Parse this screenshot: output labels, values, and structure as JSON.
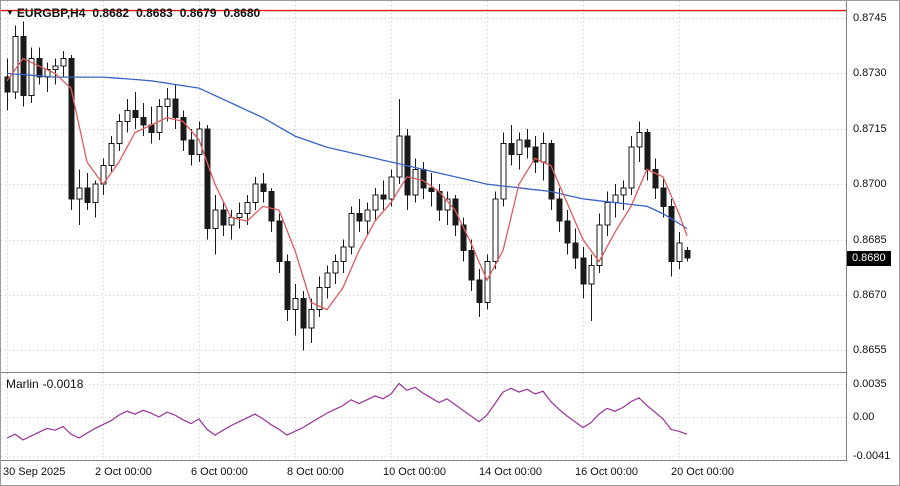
{
  "header": {
    "symbol": "EURGBP,H4",
    "quotes": [
      "0.8682",
      "0.8683",
      "0.8679",
      "0.8680"
    ]
  },
  "indicator_label": {
    "name": "Marlin",
    "value": "-0.0018"
  },
  "colors": {
    "up_fill": "#ffffff",
    "down_fill": "#1a1a1a",
    "outline": "#1a1a1a",
    "ma_fast": "#e05a5a",
    "ma_slow": "#3a64c8",
    "marlin": "#993399",
    "level": "#ee1010",
    "grid": "#c9c9c9",
    "tag_bg": "#000000",
    "tag_text": "#ffffff"
  },
  "chart_data": {
    "type": "candlestick",
    "symbol": "EURGBP",
    "timeframe": "H4",
    "title": "EURGBP,H4 0.8682 0.8683 0.8679 0.8680",
    "price_range": {
      "top": 0.87496,
      "bottom": 0.86494
    },
    "price_ticks": [
      "0.8745",
      "0.8730",
      "0.8715",
      "0.8700",
      "0.8685",
      "0.8670",
      "0.8655"
    ],
    "level_line": 0.8747,
    "current_price": {
      "label": "0.8680",
      "value": 0.868
    },
    "time_ticks": [
      {
        "label": "30 Sep 2025",
        "i": 0
      },
      {
        "label": "2 Oct 00:00",
        "i": 12
      },
      {
        "label": "6 Oct 00:00",
        "i": 24
      },
      {
        "label": "8 Oct 00:00",
        "i": 36
      },
      {
        "label": "10 Oct 00:00",
        "i": 48
      },
      {
        "label": "14 Oct 00:00",
        "i": 60
      },
      {
        "label": "16 Oct 00:00",
        "i": 72
      },
      {
        "label": "20 Oct 00:00",
        "i": 84
      }
    ],
    "candles": [
      [
        0.8729,
        0.8734,
        0.872,
        0.8725
      ],
      [
        0.8725,
        0.8743,
        0.8723,
        0.874
      ],
      [
        0.874,
        0.8744,
        0.8721,
        0.8724
      ],
      [
        0.8724,
        0.8737,
        0.8722,
        0.8734
      ],
      [
        0.8734,
        0.8737,
        0.8727,
        0.8729
      ],
      [
        0.8729,
        0.8733,
        0.8725,
        0.8731
      ],
      [
        0.8731,
        0.8734,
        0.8727,
        0.8732
      ],
      [
        0.8732,
        0.8736,
        0.8729,
        0.8734
      ],
      [
        0.8734,
        0.8735,
        0.8693,
        0.8696
      ],
      [
        0.8696,
        0.8704,
        0.8689,
        0.8699
      ],
      [
        0.8699,
        0.8703,
        0.8693,
        0.8695
      ],
      [
        0.8695,
        0.8701,
        0.8691,
        0.87
      ],
      [
        0.87,
        0.8707,
        0.8697,
        0.8705
      ],
      [
        0.8705,
        0.8713,
        0.8703,
        0.8711
      ],
      [
        0.8711,
        0.8719,
        0.8709,
        0.8717
      ],
      [
        0.8717,
        0.8723,
        0.8714,
        0.872
      ],
      [
        0.872,
        0.8725,
        0.8715,
        0.8718
      ],
      [
        0.8718,
        0.8722,
        0.8713,
        0.8716
      ],
      [
        0.8716,
        0.8721,
        0.8711,
        0.8714
      ],
      [
        0.8714,
        0.8723,
        0.8712,
        0.8721
      ],
      [
        0.8721,
        0.8726,
        0.8717,
        0.8723
      ],
      [
        0.8723,
        0.8727,
        0.8715,
        0.8718
      ],
      [
        0.8718,
        0.872,
        0.8709,
        0.8712
      ],
      [
        0.8712,
        0.8715,
        0.8705,
        0.8708
      ],
      [
        0.8708,
        0.8717,
        0.8706,
        0.8715
      ],
      [
        0.8715,
        0.8716,
        0.8685,
        0.8688
      ],
      [
        0.8688,
        0.8697,
        0.8681,
        0.8693
      ],
      [
        0.8693,
        0.8695,
        0.8686,
        0.8689
      ],
      [
        0.8689,
        0.8693,
        0.8685,
        0.8691
      ],
      [
        0.8691,
        0.8695,
        0.8688,
        0.8692
      ],
      [
        0.8692,
        0.8697,
        0.8689,
        0.8695
      ],
      [
        0.8695,
        0.8702,
        0.8693,
        0.87
      ],
      [
        0.87,
        0.8703,
        0.8695,
        0.8698
      ],
      [
        0.8698,
        0.8699,
        0.8687,
        0.869
      ],
      [
        0.869,
        0.8692,
        0.8676,
        0.8679
      ],
      [
        0.8679,
        0.8681,
        0.8663,
        0.8666
      ],
      [
        0.8666,
        0.8673,
        0.8659,
        0.8669
      ],
      [
        0.8669,
        0.8671,
        0.8655,
        0.8661
      ],
      [
        0.8661,
        0.8669,
        0.8657,
        0.8666
      ],
      [
        0.8666,
        0.8675,
        0.8664,
        0.8672
      ],
      [
        0.8672,
        0.8678,
        0.8669,
        0.8676
      ],
      [
        0.8676,
        0.8681,
        0.8673,
        0.8679
      ],
      [
        0.8679,
        0.8685,
        0.8676,
        0.8683
      ],
      [
        0.8683,
        0.8694,
        0.8681,
        0.8692
      ],
      [
        0.8692,
        0.8696,
        0.8687,
        0.869
      ],
      [
        0.869,
        0.8695,
        0.8686,
        0.8693
      ],
      [
        0.8693,
        0.8699,
        0.869,
        0.8697
      ],
      [
        0.8697,
        0.8701,
        0.8693,
        0.8696
      ],
      [
        0.8696,
        0.8704,
        0.8694,
        0.8702
      ],
      [
        0.8702,
        0.8723,
        0.87,
        0.8713
      ],
      [
        0.8713,
        0.8715,
        0.8693,
        0.8697
      ],
      [
        0.8697,
        0.8707,
        0.8695,
        0.8704
      ],
      [
        0.8704,
        0.8706,
        0.8696,
        0.8699
      ],
      [
        0.8699,
        0.8703,
        0.8694,
        0.8698
      ],
      [
        0.8698,
        0.87,
        0.869,
        0.8693
      ],
      [
        0.8693,
        0.8698,
        0.8689,
        0.8696
      ],
      [
        0.8696,
        0.8697,
        0.8686,
        0.8689
      ],
      [
        0.8689,
        0.8691,
        0.8679,
        0.8682
      ],
      [
        0.8682,
        0.8685,
        0.8671,
        0.8674
      ],
      [
        0.8674,
        0.8677,
        0.8664,
        0.8668
      ],
      [
        0.8668,
        0.8681,
        0.8666,
        0.8679
      ],
      [
        0.8679,
        0.8698,
        0.8677,
        0.8696
      ],
      [
        0.8696,
        0.8714,
        0.8694,
        0.8711
      ],
      [
        0.8711,
        0.8716,
        0.8705,
        0.8708
      ],
      [
        0.8708,
        0.8714,
        0.8704,
        0.8712
      ],
      [
        0.8712,
        0.8715,
        0.8707,
        0.871
      ],
      [
        0.871,
        0.8713,
        0.8703,
        0.8706
      ],
      [
        0.8706,
        0.8714,
        0.8701,
        0.8711
      ],
      [
        0.8711,
        0.8712,
        0.8693,
        0.8696
      ],
      [
        0.8696,
        0.8699,
        0.8687,
        0.869
      ],
      [
        0.869,
        0.8693,
        0.8681,
        0.8684
      ],
      [
        0.8684,
        0.8688,
        0.8677,
        0.868
      ],
      [
        0.868,
        0.8683,
        0.8669,
        0.8673
      ],
      [
        0.8673,
        0.8681,
        0.8663,
        0.8678
      ],
      [
        0.8678,
        0.8692,
        0.8676,
        0.8689
      ],
      [
        0.8689,
        0.8698,
        0.8686,
        0.8695
      ],
      [
        0.8695,
        0.87,
        0.8691,
        0.8697
      ],
      [
        0.8697,
        0.8701,
        0.8693,
        0.8699
      ],
      [
        0.8699,
        0.8713,
        0.8697,
        0.871
      ],
      [
        0.871,
        0.8717,
        0.8706,
        0.8714
      ],
      [
        0.8714,
        0.8715,
        0.8701,
        0.8704
      ],
      [
        0.8704,
        0.8707,
        0.8696,
        0.8699
      ],
      [
        0.8699,
        0.8702,
        0.8691,
        0.8694
      ],
      [
        0.8694,
        0.8696,
        0.8675,
        0.8679
      ],
      [
        0.8679,
        0.8687,
        0.8677,
        0.8684
      ],
      [
        0.8682,
        0.8683,
        0.8679,
        0.868
      ]
    ],
    "ma_slow_points": [
      [
        0,
        0.873
      ],
      [
        6,
        0.8729
      ],
      [
        12,
        0.8729
      ],
      [
        18,
        0.8728
      ],
      [
        24,
        0.8726
      ],
      [
        28,
        0.8722
      ],
      [
        32,
        0.8718
      ],
      [
        36,
        0.8713
      ],
      [
        40,
        0.871
      ],
      [
        44,
        0.8708
      ],
      [
        48,
        0.8706
      ],
      [
        52,
        0.8704
      ],
      [
        56,
        0.8702
      ],
      [
        60,
        0.87
      ],
      [
        64,
        0.8699
      ],
      [
        68,
        0.8698
      ],
      [
        72,
        0.8696
      ],
      [
        76,
        0.8695
      ],
      [
        80,
        0.8694
      ],
      [
        82,
        0.8692
      ],
      [
        85,
        0.8688
      ]
    ],
    "ma_fast_points": [
      [
        0,
        0.8728
      ],
      [
        2,
        0.8734
      ],
      [
        4,
        0.8732
      ],
      [
        6,
        0.873
      ],
      [
        8,
        0.8726
      ],
      [
        10,
        0.8706
      ],
      [
        12,
        0.87
      ],
      [
        14,
        0.8706
      ],
      [
        16,
        0.8714
      ],
      [
        18,
        0.8716
      ],
      [
        20,
        0.8718
      ],
      [
        22,
        0.8717
      ],
      [
        24,
        0.8712
      ],
      [
        26,
        0.87
      ],
      [
        28,
        0.8691
      ],
      [
        30,
        0.869
      ],
      [
        32,
        0.8694
      ],
      [
        34,
        0.8693
      ],
      [
        36,
        0.8682
      ],
      [
        38,
        0.8668
      ],
      [
        40,
        0.8666
      ],
      [
        42,
        0.8672
      ],
      [
        44,
        0.8682
      ],
      [
        46,
        0.869
      ],
      [
        48,
        0.8695
      ],
      [
        50,
        0.8702
      ],
      [
        52,
        0.8701
      ],
      [
        54,
        0.8698
      ],
      [
        56,
        0.8693
      ],
      [
        58,
        0.8684
      ],
      [
        60,
        0.8674
      ],
      [
        62,
        0.8682
      ],
      [
        64,
        0.87
      ],
      [
        66,
        0.8707
      ],
      [
        68,
        0.8705
      ],
      [
        70,
        0.8695
      ],
      [
        72,
        0.8685
      ],
      [
        74,
        0.8679
      ],
      [
        76,
        0.8687
      ],
      [
        78,
        0.8694
      ],
      [
        80,
        0.8704
      ],
      [
        82,
        0.8702
      ],
      [
        84,
        0.8692
      ],
      [
        85,
        0.8686
      ]
    ],
    "indicator": {
      "name": "Marlin",
      "current_value": -0.0018,
      "range": {
        "top": 0.0046,
        "bottom": -0.0044
      },
      "ticks": [
        {
          "label": "0.0035",
          "value": 0.0035
        },
        {
          "label": "0.00",
          "value": 0.0
        },
        {
          "label": "-0.0041",
          "value": -0.0041
        }
      ],
      "values": [
        -0.0022,
        -0.0018,
        -0.0024,
        -0.002,
        -0.0016,
        -0.0012,
        -0.0014,
        -0.001,
        -0.0018,
        -0.0022,
        -0.0017,
        -0.0012,
        -0.0008,
        -0.0004,
        0.0002,
        0.0006,
        0.0003,
        0.0007,
        0.0004,
        0.0,
        0.0005,
        0.0002,
        -0.0003,
        -0.0007,
        -0.0002,
        -0.0013,
        -0.0019,
        -0.0014,
        -0.0009,
        -0.0005,
        -0.0001,
        0.0003,
        -0.0002,
        -0.0008,
        -0.0013,
        -0.0019,
        -0.0015,
        -0.0011,
        -0.0006,
        -0.0001,
        0.0004,
        0.0008,
        0.0012,
        0.0018,
        0.0014,
        0.0018,
        0.0022,
        0.0019,
        0.0024,
        0.0035,
        0.0028,
        0.0031,
        0.0025,
        0.002,
        0.0015,
        0.0019,
        0.0013,
        0.0007,
        0.0001,
        -0.0005,
        0.0002,
        0.0014,
        0.0026,
        0.003,
        0.0026,
        0.0029,
        0.0024,
        0.0027,
        0.0016,
        0.0008,
        0.0001,
        -0.0005,
        -0.0011,
        -0.0006,
        0.0003,
        0.0009,
        0.0006,
        0.001,
        0.0016,
        0.002,
        0.0012,
        0.0005,
        -0.0002,
        -0.0013,
        -0.0015,
        -0.0018
      ]
    }
  }
}
